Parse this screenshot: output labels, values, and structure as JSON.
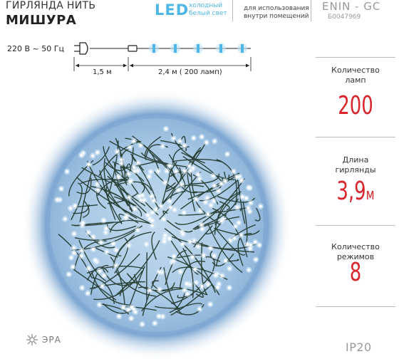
{
  "header": {
    "title_line1": "ГИРЛЯНДА НИТЬ",
    "title_line2": "МИШУРА",
    "led_logo": "LED",
    "led_color_line1": "холодный",
    "led_color_line2": "белый свет",
    "usage_line1": "для использования",
    "usage_line2": "внутри помещений",
    "model": "ENIN - GC",
    "article": "Б0047969"
  },
  "diagram": {
    "voltage": "220 В ~ 50 Гц",
    "cable_length": "1,5 м",
    "lit_length": "2,4 м ( 200 ламп)"
  },
  "stats": {
    "lamps_label_1": "Количество",
    "lamps_label_2": "ламп",
    "lamps_value": "200",
    "length_label_1": "Длина",
    "length_label_2": "гирлянды",
    "length_value": "3,9",
    "length_unit": "м",
    "modes_label_1": "Количество",
    "modes_label_2": "режимов",
    "modes_value": "8"
  },
  "footer": {
    "ip_rating": "IP20",
    "brand": "ЭРА"
  },
  "colors": {
    "accent_red": "#d8262c",
    "led_blue": "#4fb7e6",
    "wire_green": "#1d3326"
  }
}
